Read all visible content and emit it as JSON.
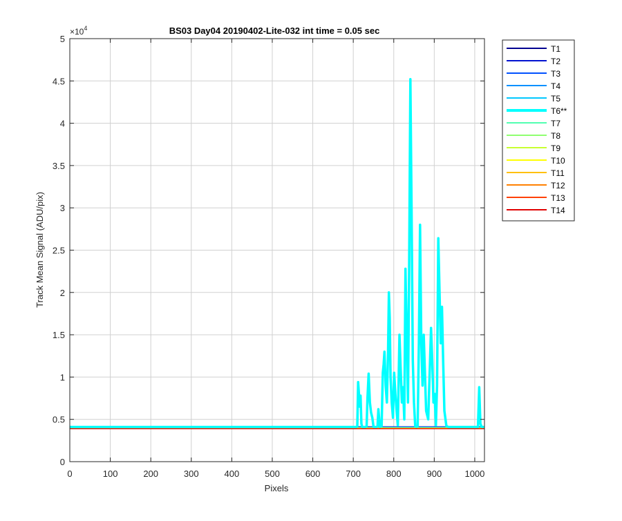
{
  "chart_data": {
    "type": "line",
    "title": "BS03 Day04 20190402-Lite-032 int time = 0.05 sec",
    "xlabel": "Pixels",
    "ylabel": "Track Mean Signal (ADU/pix)",
    "y_exponent_label": "×10",
    "y_exponent_power": "4",
    "xlim": [
      0,
      1024
    ],
    "ylim": [
      0,
      50000
    ],
    "x_ticks": [
      0,
      100,
      200,
      300,
      400,
      500,
      600,
      700,
      800,
      900,
      1000
    ],
    "x_tick_labels": [
      "0",
      "100",
      "200",
      "300",
      "400",
      "500",
      "600",
      "700",
      "800",
      "900",
      "1000"
    ],
    "y_ticks": [
      0,
      5000,
      10000,
      15000,
      20000,
      25000,
      30000,
      35000,
      40000,
      45000,
      50000
    ],
    "y_tick_labels": [
      "0",
      "0.5",
      "1",
      "1.5",
      "2",
      "2.5",
      "3",
      "3.5",
      "4",
      "4.5",
      "5"
    ],
    "grid": true,
    "legend_position": "outside-right-top",
    "baseline_value": 4000,
    "series": [
      {
        "name": "T1",
        "color": "#00008f",
        "bold": false
      },
      {
        "name": "T2",
        "color": "#0010d0",
        "bold": false
      },
      {
        "name": "T3",
        "color": "#0050ff",
        "bold": false
      },
      {
        "name": "T4",
        "color": "#0090ff",
        "bold": false
      },
      {
        "name": "T5",
        "color": "#00c8ff",
        "bold": false
      },
      {
        "name": "T6**",
        "color": "#00ffff",
        "bold": true,
        "x": [
          0,
          700,
          708,
          710,
          712,
          714,
          716,
          718,
          720,
          722,
          730,
          733,
          735,
          738,
          741,
          744,
          747,
          750,
          758,
          760,
          762,
          764,
          766,
          770,
          773,
          775,
          777,
          780,
          783,
          786,
          788,
          790,
          792,
          795,
          798,
          801,
          804,
          807,
          810,
          812,
          814,
          817,
          820,
          823,
          826,
          829,
          832,
          835,
          838,
          841,
          844,
          847,
          850,
          853,
          856,
          859,
          862,
          865,
          868,
          871,
          874,
          880,
          885,
          889,
          892,
          895,
          898,
          901,
          904,
          907,
          910,
          913,
          916,
          919,
          922,
          925,
          930,
          935,
          938,
          941,
          944,
          947,
          950,
          953,
          956,
          959,
          962,
          1000,
          1008,
          1011,
          1014,
          1017,
          1020,
          1024
        ],
        "values": [
          4100,
          4100,
          4100,
          4200,
          9400,
          8000,
          6500,
          7800,
          4500,
          4100,
          4100,
          4200,
          7500,
          10400,
          7000,
          5800,
          5200,
          4100,
          4100,
          4200,
          6200,
          5000,
          4100,
          4200,
          10500,
          11500,
          13000,
          9000,
          7000,
          13000,
          20000,
          17000,
          10000,
          7000,
          5200,
          10500,
          8000,
          6000,
          4300,
          9500,
          15000,
          11000,
          7000,
          8800,
          5000,
          22800,
          15000,
          7000,
          22600,
          45200,
          30000,
          12000,
          7000,
          4200,
          4100,
          4200,
          14000,
          28000,
          14000,
          9000,
          15000,
          6000,
          5000,
          11000,
          15800,
          12000,
          7000,
          8000,
          4300,
          9000,
          26400,
          20000,
          14000,
          18300,
          12000,
          6000,
          4200,
          4100,
          4100,
          4100,
          4100,
          4100,
          4100,
          4100,
          4100,
          4100,
          4100,
          4100,
          4100,
          8800,
          4500,
          4100,
          4100,
          4100
        ]
      },
      {
        "name": "T7",
        "color": "#50ffb0",
        "bold": false
      },
      {
        "name": "T8",
        "color": "#8fff70",
        "bold": false
      },
      {
        "name": "T9",
        "color": "#c8ff30",
        "bold": false
      },
      {
        "name": "T10",
        "color": "#ffff00",
        "bold": false
      },
      {
        "name": "T11",
        "color": "#ffc000",
        "bold": false
      },
      {
        "name": "T12",
        "color": "#ff8000",
        "bold": false
      },
      {
        "name": "T13",
        "color": "#ff4000",
        "bold": false
      },
      {
        "name": "T14",
        "color": "#e00000",
        "bold": false
      }
    ]
  }
}
